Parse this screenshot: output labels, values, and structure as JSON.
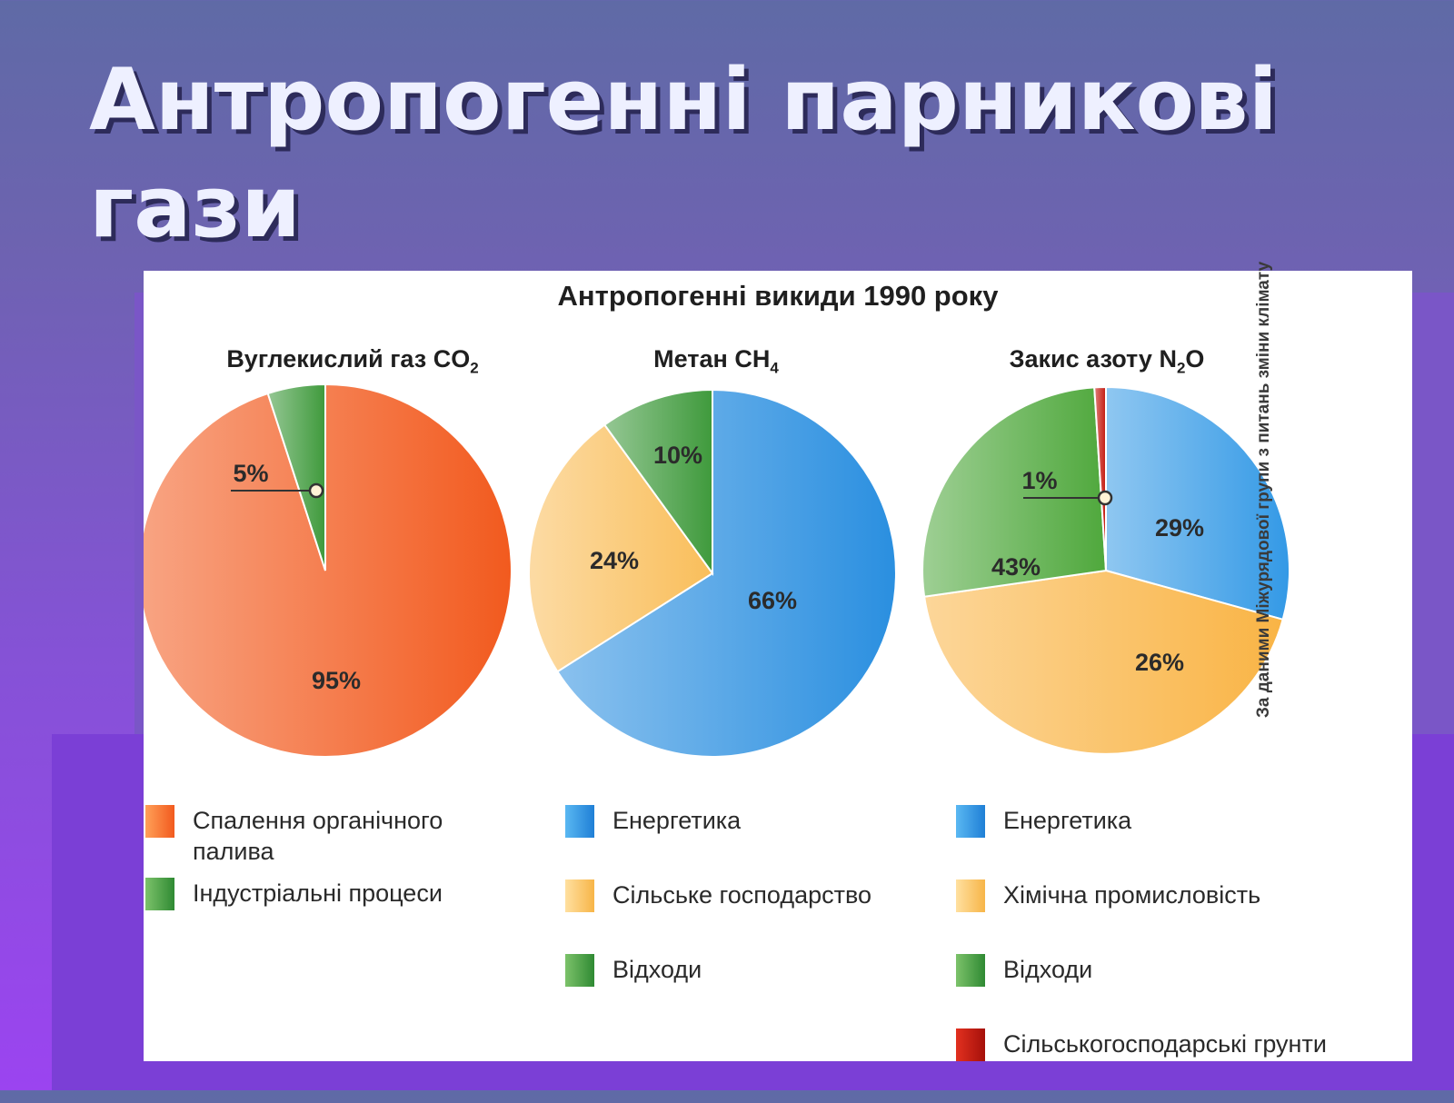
{
  "slide": {
    "title": "Антропогенні парникові гази"
  },
  "figure": {
    "title": "Антропогенні викиди 1990 року",
    "side_note": "За даними Міжурядової групи з питань зміни клімату"
  },
  "chart_data": [
    {
      "type": "pie",
      "title": "Вуглекислий газ CO2",
      "title_main": "Вуглекислий газ CO",
      "title_sub": "2",
      "slices": [
        {
          "label": "Спалення органічного палива",
          "value": 95,
          "value_label": "95%",
          "color": "#f25a1e"
        },
        {
          "label": "Індустріальні процеси",
          "value": 5,
          "value_label": "5%",
          "color": "#3f9a3c"
        }
      ]
    },
    {
      "type": "pie",
      "title": "Метан CH4",
      "title_main": "Метан CH",
      "title_sub": "4",
      "slices": [
        {
          "label": "Енергетика",
          "value": 66,
          "value_label": "66%",
          "color": "#2a8fe0"
        },
        {
          "label": "Сільське господарство",
          "value": 24,
          "value_label": "24%",
          "color": "#f9be5a"
        },
        {
          "label": "Відходи",
          "value": 10,
          "value_label": "10%",
          "color": "#3f9a3c"
        }
      ]
    },
    {
      "type": "pie",
      "title": "Закис азоту N2O",
      "title_main": "Закис азоту N",
      "title_sub": "2",
      "title_end": "O",
      "slices": [
        {
          "label": "Енергетика",
          "value": 29,
          "value_label": "29%",
          "color": "#3399e6"
        },
        {
          "label": "Хімічна промисловість",
          "value": 43,
          "value_label": "43%",
          "color": "#f9b445"
        },
        {
          "label": "Відходи",
          "value": 26,
          "value_label": "26%",
          "color": "#4fa83c"
        },
        {
          "label": "Сільськогосподарські грунти",
          "value": 1,
          "value_label": "1%",
          "color": "#c41a10"
        }
      ]
    }
  ]
}
